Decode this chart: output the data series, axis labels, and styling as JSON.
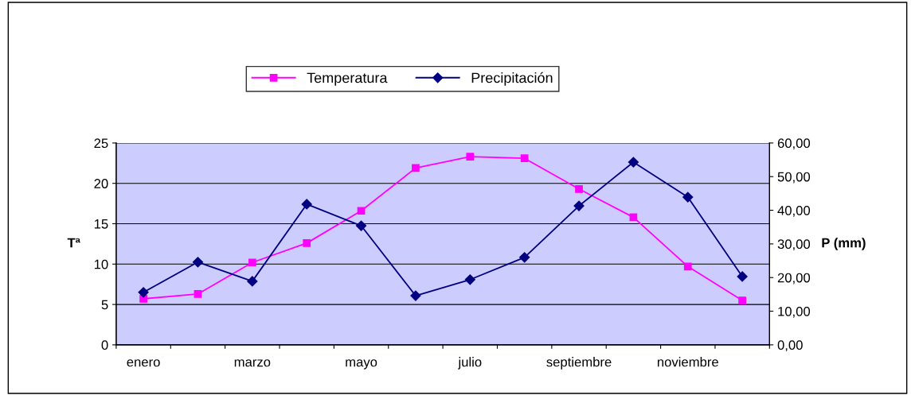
{
  "chart_data": {
    "type": "line",
    "categories": [
      "enero",
      null,
      "marzo",
      null,
      "mayo",
      null,
      "julio",
      null,
      "septiembre",
      null,
      "noviembre",
      null
    ],
    "series": [
      {
        "name": "Temperatura",
        "color": "#ff00ff",
        "marker": "square",
        "values": [
          5.7,
          6.3,
          10.2,
          12.6,
          16.6,
          21.9,
          23.3,
          23.1,
          19.3,
          15.8,
          9.7,
          5.5
        ]
      },
      {
        "name": "Precipitación",
        "color": "#000080",
        "marker": "diamond",
        "axis": "y2",
        "values": [
          15.6,
          24.6,
          18.9,
          41.8,
          35.4,
          14.6,
          19.4,
          26.0,
          41.3,
          54.3,
          43.9,
          20.3
        ]
      }
    ],
    "ylabel": "Tª",
    "y2label": "P (mm)",
    "ylim": [
      0,
      25
    ],
    "yticks": [
      0,
      5,
      10,
      15,
      20,
      25
    ],
    "y2lim": [
      0,
      60
    ],
    "y2ticks": [
      {
        "value": 0,
        "label": "0,00"
      },
      {
        "value": 10,
        "label": "10,00"
      },
      {
        "value": 20,
        "label": "20,00"
      },
      {
        "value": 30,
        "label": "30,00"
      },
      {
        "value": 40,
        "label": "40,00"
      },
      {
        "value": 50,
        "label": "50,00"
      },
      {
        "value": 60,
        "label": "60,00"
      }
    ],
    "grid": "y",
    "legend": "top",
    "line_style": "solid"
  }
}
